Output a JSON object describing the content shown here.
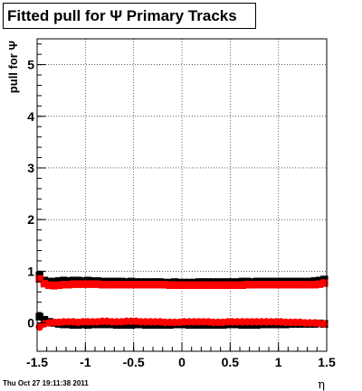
{
  "window": {
    "title": "Fitted pull for  Ψ   Primary Tracks"
  },
  "footer": {
    "timestamp": "Thu Oct 27 19:11:38 2011"
  },
  "colors": {
    "series_black": "#000000",
    "series_red": "#ff0000",
    "axis": "#000000",
    "grid": "#000000"
  },
  "chart_data": {
    "type": "scatter",
    "title": "Fitted pull for  Ψ   Primary Tracks",
    "xlabel": "η",
    "ylabel": "pull for Ψ",
    "xlim": [
      -1.5,
      1.5
    ],
    "ylim": [
      -0.55,
      5.5
    ],
    "grid": true,
    "x_ticks": [
      -1.5,
      -1,
      -0.5,
      0,
      0.5,
      1,
      1.5
    ],
    "x_tick_labels": [
      "-1.5",
      "-1",
      "-0.5",
      "0",
      "0.5",
      "1",
      "1.5"
    ],
    "y_ticks": [
      0,
      1,
      2,
      3,
      4,
      5
    ],
    "y_tick_labels": [
      "0",
      "1",
      "2",
      "3",
      "4",
      "5"
    ],
    "x": [
      -1.475,
      -1.425,
      -1.375,
      -1.325,
      -1.275,
      -1.225,
      -1.175,
      -1.125,
      -1.075,
      -1.025,
      -0.975,
      -0.925,
      -0.875,
      -0.825,
      -0.775,
      -0.725,
      -0.675,
      -0.625,
      -0.575,
      -0.525,
      -0.475,
      -0.425,
      -0.375,
      -0.325,
      -0.275,
      -0.225,
      -0.175,
      -0.125,
      -0.075,
      -0.025,
      0.025,
      0.075,
      0.125,
      0.175,
      0.225,
      0.275,
      0.325,
      0.375,
      0.425,
      0.475,
      0.525,
      0.575,
      0.625,
      0.675,
      0.725,
      0.775,
      0.825,
      0.875,
      0.925,
      0.975,
      1.025,
      1.075,
      1.125,
      1.175,
      1.225,
      1.275,
      1.325,
      1.375,
      1.425,
      1.475
    ],
    "series": [
      {
        "color": "#000000",
        "marker": "square",
        "values": [
          0.92,
          0.82,
          0.8,
          0.8,
          0.81,
          0.82,
          0.81,
          0.82,
          0.82,
          0.81,
          0.82,
          0.81,
          0.81,
          0.8,
          0.8,
          0.8,
          0.8,
          0.8,
          0.79,
          0.8,
          0.79,
          0.79,
          0.79,
          0.79,
          0.79,
          0.79,
          0.78,
          0.78,
          0.79,
          0.78,
          0.78,
          0.78,
          0.78,
          0.79,
          0.79,
          0.79,
          0.79,
          0.79,
          0.79,
          0.79,
          0.79,
          0.79,
          0.8,
          0.8,
          0.79,
          0.8,
          0.8,
          0.8,
          0.8,
          0.8,
          0.8,
          0.8,
          0.8,
          0.8,
          0.8,
          0.8,
          0.8,
          0.81,
          0.82,
          0.84
        ]
      },
      {
        "color": "#ff0000",
        "marker": "square",
        "values": [
          0.85,
          0.76,
          0.73,
          0.72,
          0.73,
          0.74,
          0.74,
          0.75,
          0.75,
          0.75,
          0.75,
          0.75,
          0.75,
          0.74,
          0.74,
          0.74,
          0.74,
          0.74,
          0.74,
          0.74,
          0.74,
          0.74,
          0.74,
          0.74,
          0.74,
          0.74,
          0.74,
          0.73,
          0.73,
          0.73,
          0.73,
          0.73,
          0.73,
          0.73,
          0.73,
          0.73,
          0.73,
          0.73,
          0.73,
          0.73,
          0.73,
          0.73,
          0.73,
          0.74,
          0.74,
          0.74,
          0.74,
          0.74,
          0.74,
          0.74,
          0.74,
          0.74,
          0.74,
          0.74,
          0.74,
          0.74,
          0.74,
          0.74,
          0.75,
          0.77
        ]
      },
      {
        "color": "#000000",
        "marker": "square",
        "values": [
          0.12,
          0.06,
          0.02,
          0.0,
          -0.02,
          -0.03,
          -0.03,
          -0.04,
          -0.04,
          -0.03,
          -0.04,
          -0.03,
          -0.03,
          -0.03,
          -0.03,
          -0.03,
          -0.04,
          -0.04,
          -0.04,
          -0.04,
          -0.03,
          -0.03,
          -0.04,
          -0.04,
          -0.04,
          -0.04,
          -0.04,
          -0.04,
          -0.03,
          -0.03,
          -0.03,
          -0.04,
          -0.04,
          -0.04,
          -0.04,
          -0.04,
          -0.04,
          -0.04,
          -0.04,
          -0.03,
          -0.03,
          -0.03,
          -0.04,
          -0.04,
          -0.04,
          -0.04,
          -0.03,
          -0.03,
          -0.03,
          -0.03,
          -0.03,
          -0.03,
          -0.02,
          -0.02,
          -0.02,
          -0.02,
          -0.02,
          -0.02,
          -0.01,
          -0.02
        ]
      },
      {
        "color": "#ff0000",
        "marker": "circle",
        "values": [
          -0.08,
          -0.02,
          0.0,
          0.01,
          0.01,
          0.02,
          0.02,
          0.02,
          0.01,
          0.02,
          0.02,
          0.02,
          0.02,
          0.03,
          0.03,
          0.02,
          0.02,
          0.02,
          0.03,
          0.03,
          0.03,
          0.02,
          0.02,
          0.02,
          0.02,
          0.02,
          0.01,
          0.01,
          0.01,
          0.01,
          0.02,
          0.02,
          0.02,
          0.02,
          0.02,
          0.02,
          0.01,
          0.01,
          0.01,
          0.02,
          0.02,
          0.02,
          0.02,
          0.02,
          0.02,
          0.02,
          0.02,
          0.02,
          0.02,
          0.02,
          0.02,
          0.01,
          0.01,
          0.01,
          0.01,
          0.0,
          0.0,
          0.0,
          -0.01,
          -0.02
        ]
      }
    ]
  }
}
